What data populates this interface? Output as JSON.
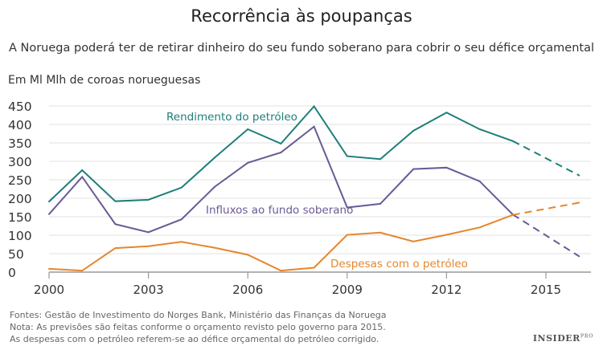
{
  "title": "Recorrência às poupanças",
  "subtitle": "A Noruega poderá ter de retirar dinheiro do seu fundo soberano para cobrir o seu défice orçamental",
  "footnotes": [
    "Fontes: Gestão de Investimento do Norges Bank, Ministério das Finanças da Noruega",
    "Nota: As previsões são feitas conforme o orçamento revisto pelo governo para 2015.",
    "As despesas com o petróleo referem-se ao défice orçamental do petróleo corrigido."
  ],
  "logo": {
    "text": "INSIDER",
    "suffix": "PRO"
  },
  "chart_data": {
    "type": "line",
    "ylabel": "Em Ml Mlh de coroas norueguesas",
    "ylim": [
      0,
      450
    ],
    "yticks": [
      0,
      50,
      100,
      150,
      200,
      250,
      300,
      350,
      400,
      450
    ],
    "xlim": [
      2000,
      2016.5
    ],
    "xticks": [
      2000,
      2003,
      2006,
      2009,
      2012,
      2015
    ],
    "grid": true,
    "forecast_from": 2014,
    "x": [
      2000,
      2001,
      2002,
      2003,
      2004,
      2005,
      2006,
      2007,
      2008,
      2009,
      2010,
      2011,
      2012,
      2013,
      2014,
      2016
    ],
    "series": [
      {
        "name": "Rendimento do petróleo",
        "color": "#1e7f79",
        "values": [
          191,
          276,
          192,
          196,
          229,
          310,
          387,
          348,
          449,
          314,
          306,
          383,
          432,
          387,
          355,
          262
        ]
      },
      {
        "name": "Influxos ao fundo soberano",
        "color": "#6a5a96",
        "values": [
          157,
          258,
          130,
          108,
          143,
          231,
          296,
          324,
          394,
          175,
          185,
          279,
          283,
          246,
          156,
          43
        ]
      },
      {
        "name": "Despesas com o petróleo",
        "color": "#e5862c",
        "values": [
          9,
          4,
          65,
          70,
          82,
          66,
          47,
          4,
          12,
          101,
          107,
          83,
          101,
          121,
          155,
          188
        ]
      }
    ]
  }
}
